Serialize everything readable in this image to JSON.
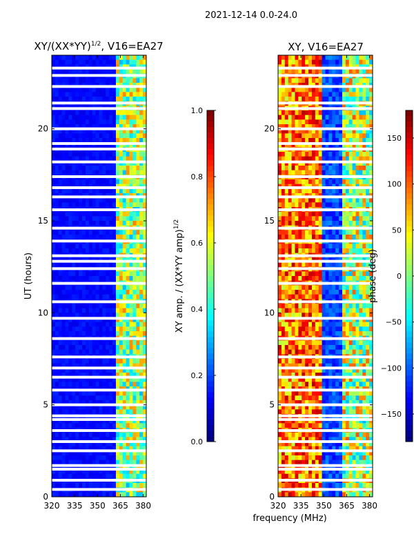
{
  "suptitle": "2021-12-14 0.0-24.0",
  "chart_data": [
    {
      "type": "heatmap",
      "title_main": "XY/(XX*YY)",
      "title_exp": "1/2",
      "title_rest": ", V16=EA27",
      "xlabel": "",
      "ylabel": "UT (hours)",
      "xlim": [
        320,
        382
      ],
      "ylim": [
        0,
        24
      ],
      "xticks": [
        "320",
        "335",
        "350",
        "365",
        "380"
      ],
      "xtick_values": [
        320,
        335,
        350,
        365,
        380
      ],
      "yticks": [
        "0",
        "5",
        "10",
        "15",
        "20"
      ],
      "ytick_values": [
        0,
        5,
        10,
        15,
        20
      ],
      "colorbar": {
        "label_main": "XY amp. / (XX*YY amp)",
        "label_exp": "1/2",
        "range": [
          0.0,
          1.0
        ],
        "ticks": [
          "0.0",
          "0.2",
          "0.4",
          "0.6",
          "0.8",
          "1.0"
        ],
        "tick_values": [
          0.0,
          0.2,
          0.4,
          0.6,
          0.8,
          1.0
        ]
      },
      "flagged_hours": [
        0.4,
        0.9,
        1.5,
        1.7,
        2.5,
        3.0,
        3.6,
        4.2,
        4.4,
        5.0,
        5.8,
        6.5,
        7.0,
        7.6,
        8.6,
        9.7,
        10.6,
        11.6,
        12.4,
        12.8,
        13.1,
        13.9,
        14.6,
        15.6,
        16.3,
        16.8,
        17.4,
        18.2,
        18.9,
        19.2,
        20.0,
        21.1,
        21.4,
        22.3,
        22.9,
        23.3
      ],
      "bright_band_mhz": [
        362,
        381
      ]
    },
    {
      "type": "heatmap",
      "title_main": "XY, V16=EA27",
      "xlabel": "frequency (MHz)",
      "ylabel": "",
      "xlim": [
        320,
        382
      ],
      "ylim": [
        0,
        24
      ],
      "xticks": [
        "320",
        "335",
        "350",
        "365",
        "380"
      ],
      "xtick_values": [
        320,
        335,
        350,
        365,
        380
      ],
      "yticks": [
        "0",
        "5",
        "10",
        "15",
        "20"
      ],
      "ytick_values": [
        0,
        5,
        10,
        15,
        20
      ],
      "colorbar": {
        "label": "phase (deg)",
        "range": [
          -180,
          180
        ],
        "ticks": [
          "−150",
          "−100",
          "−50",
          "0",
          "50",
          "100",
          "150"
        ],
        "tick_values": [
          -150,
          -100,
          -50,
          0,
          50,
          100,
          150
        ]
      },
      "flagged_hours": [
        0.4,
        0.9,
        1.5,
        1.7,
        2.5,
        3.0,
        3.6,
        4.2,
        4.4,
        5.0,
        5.8,
        6.5,
        7.0,
        7.6,
        8.6,
        9.7,
        10.6,
        11.6,
        12.4,
        12.8,
        13.1,
        13.9,
        14.6,
        15.6,
        16.3,
        16.8,
        17.4,
        18.2,
        18.9,
        19.2,
        20.0,
        21.1,
        21.4,
        22.3,
        22.9,
        23.3
      ],
      "phase_bands_mhz": [
        [
          320,
          336
        ],
        [
          336,
          349
        ],
        [
          349,
          361
        ],
        [
          361,
          382
        ]
      ]
    }
  ],
  "colors": {
    "jet": [
      "#00007f",
      "#0000ff",
      "#007fff",
      "#00ffff",
      "#7fff7f",
      "#ffff00",
      "#ff7f00",
      "#ff0000",
      "#7f0000"
    ],
    "flag": "#ffffff",
    "axis": "#000000"
  }
}
